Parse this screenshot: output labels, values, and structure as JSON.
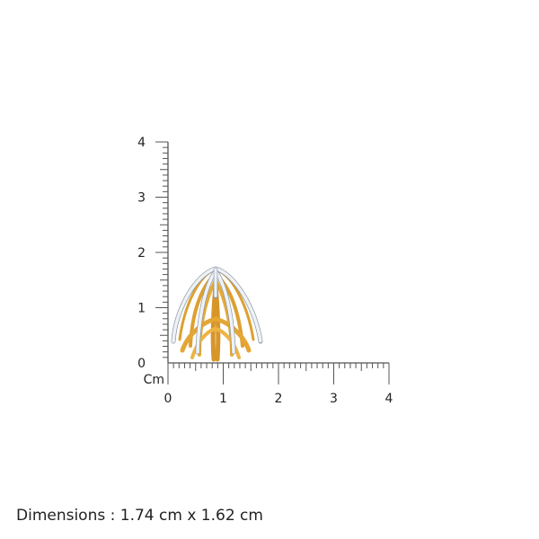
{
  "ruler": {
    "unit_label": "Cm",
    "vertical_labels": [
      "0",
      "1",
      "2",
      "3",
      "4"
    ],
    "horizontal_labels": [
      "0",
      "1",
      "2",
      "3",
      "4"
    ],
    "max_cm": 4,
    "minor_ticks_per_cm": 10,
    "color": "#555555"
  },
  "product": {
    "metal_color": "#E0A22E",
    "stone_color": "#E8EEF3"
  },
  "dimensions": {
    "text": "Dimensions : 1.74 cm x 1.62 cm"
  }
}
